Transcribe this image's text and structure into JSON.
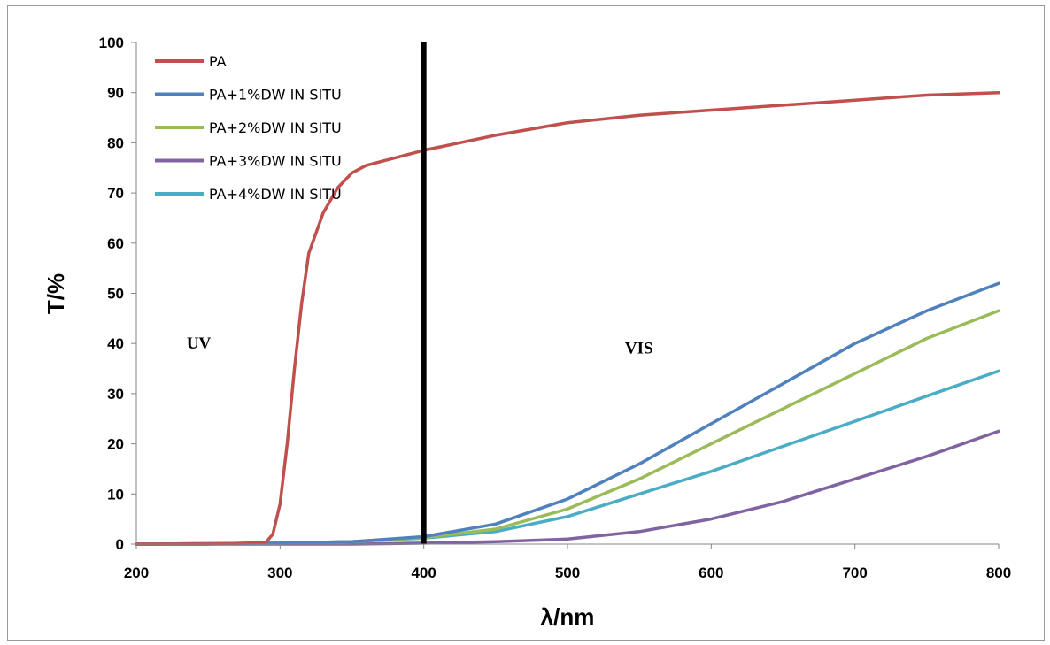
{
  "chart_data": {
    "type": "line",
    "xlabel": "λ/nm",
    "ylabel": "T/%",
    "xlim": [
      200,
      800
    ],
    "ylim": [
      0,
      100
    ],
    "x_ticks": [
      "200",
      "300",
      "400",
      "500",
      "600",
      "700",
      "800"
    ],
    "y_ticks": [
      "0",
      "10",
      "20",
      "30",
      "40",
      "50",
      "60",
      "70",
      "80",
      "90",
      "100"
    ],
    "grid": false,
    "legend": "top-left",
    "annotations": [
      {
        "text": "UV",
        "x": 235,
        "y": 39
      },
      {
        "text": "VIS",
        "x": 540,
        "y": 38
      }
    ],
    "vertical_line": {
      "x": 400,
      "color": "#000000"
    },
    "series": [
      {
        "name": "PA",
        "color": "#C0504D",
        "x": [
          200,
          250,
          290,
          295,
          300,
          305,
          310,
          315,
          320,
          330,
          340,
          350,
          360,
          380,
          400,
          450,
          500,
          550,
          600,
          650,
          700,
          750,
          800
        ],
        "y": [
          0,
          0,
          0.3,
          2,
          8,
          20,
          35,
          48,
          58,
          66,
          71,
          74,
          75.5,
          77,
          78.5,
          81.5,
          84,
          85.5,
          86.5,
          87.5,
          88.5,
          89.5,
          90
        ]
      },
      {
        "name": "PA+1%DW IN SITU",
        "color": "#4F81BD",
        "x": [
          200,
          300,
          350,
          400,
          450,
          500,
          550,
          600,
          650,
          700,
          750,
          800
        ],
        "y": [
          0,
          0.2,
          0.5,
          1.5,
          4,
          9,
          16,
          24,
          32,
          40,
          46.5,
          52
        ]
      },
      {
        "name": "PA+2%DW IN SITU",
        "color": "#9BBB59",
        "x": [
          200,
          300,
          350,
          400,
          450,
          500,
          550,
          600,
          650,
          700,
          750,
          800
        ],
        "y": [
          0,
          0.2,
          0.5,
          1.3,
          3,
          7,
          13,
          20,
          27,
          34,
          41,
          46.5
        ]
      },
      {
        "name": "PA+3%DW IN SITU",
        "color": "#8064A2",
        "x": [
          200,
          300,
          350,
          400,
          450,
          500,
          550,
          600,
          650,
          700,
          750,
          800
        ],
        "y": [
          0,
          0,
          0,
          0.2,
          0.5,
          1,
          2.5,
          5,
          8.5,
          13,
          17.5,
          22.5
        ]
      },
      {
        "name": "PA+4%DW IN SITU",
        "color": "#4BACC6",
        "x": [
          200,
          300,
          350,
          400,
          450,
          500,
          550,
          600,
          650,
          700,
          750,
          800
        ],
        "y": [
          0,
          0.2,
          0.5,
          1.2,
          2.5,
          5.5,
          10,
          14.5,
          19.5,
          24.5,
          29.5,
          34.5
        ]
      }
    ]
  }
}
